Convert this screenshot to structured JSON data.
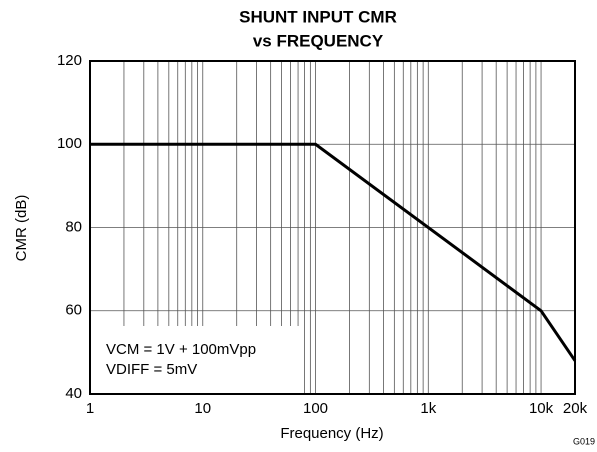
{
  "chart_data": {
    "type": "line",
    "title": [
      "SHUNT INPUT CMR",
      "vs FREQUENCY"
    ],
    "x_label": "Frequency (Hz)",
    "y_label": "CMR (dB)",
    "annotations": [
      "VCM = 1V + 100mVpp",
      "VDIFF = 5mV"
    ],
    "figure_id": "G019",
    "x_log": true,
    "xlim": [
      1,
      20000
    ],
    "ylim": [
      40,
      120
    ],
    "xticks": [
      1,
      10,
      100,
      {
        "value": 1000,
        "label": "1k"
      },
      {
        "value": 10000,
        "label": "10k"
      },
      {
        "value": 20000,
        "label": "20k"
      }
    ],
    "xgrid_minor": [
      2,
      3,
      4,
      5,
      6,
      7,
      8,
      9,
      20,
      30,
      40,
      50,
      60,
      70,
      80,
      90,
      200,
      300,
      400,
      500,
      600,
      700,
      800,
      900,
      2000,
      3000,
      4000,
      5000,
      6000,
      7000,
      8000,
      9000
    ],
    "yticks": [
      40,
      60,
      80,
      100,
      120
    ],
    "grid": true,
    "series": [
      {
        "color": "#000000",
        "x": [
          1,
          100,
          10000,
          20000
        ],
        "values": [
          100,
          100,
          60,
          48
        ]
      }
    ]
  }
}
